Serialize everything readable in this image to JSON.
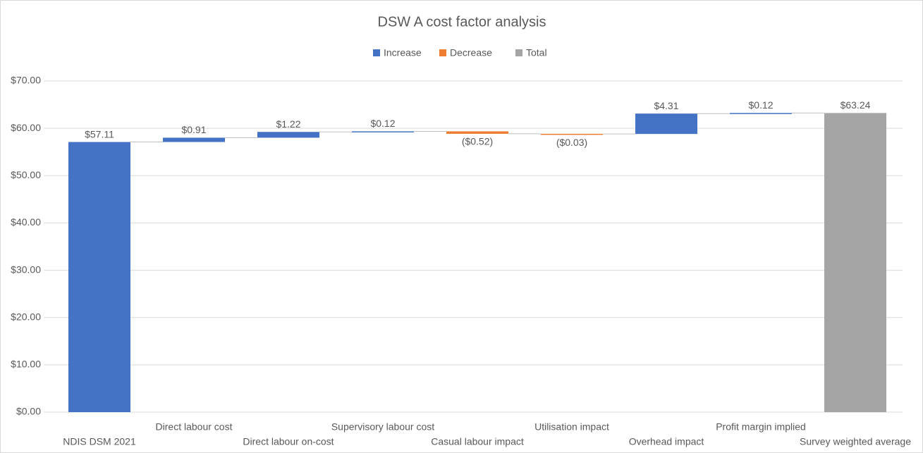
{
  "chart_data": {
    "type": "waterfall",
    "title": "DSW A cost factor analysis",
    "categories": [
      "NDIS DSM 2021",
      "Direct labour cost",
      "Direct labour on-cost",
      "Supervisory labour cost",
      "Casual labour impact",
      "Utilisation impact",
      "Overhead impact",
      "Profit margin implied",
      "Survey weighted average"
    ],
    "values": [
      57.11,
      0.91,
      1.22,
      0.12,
      -0.52,
      -0.03,
      4.31,
      0.12,
      63.24
    ],
    "value_labels": [
      "$57.11",
      "$0.91",
      "$1.22",
      "$0.12",
      "($0.52)",
      "($0.03)",
      "$4.31",
      "$0.12",
      "$63.24"
    ],
    "totals": [
      8
    ],
    "legend": [
      {
        "name": "Increase",
        "color": "#4472c4"
      },
      {
        "name": "Decrease",
        "color": "#ed7d31"
      },
      {
        "name": "Total",
        "color": "#a5a5a5"
      }
    ],
    "ylim": [
      0,
      70
    ],
    "yticks": [
      {
        "value": 0,
        "label": "$0.00"
      },
      {
        "value": 10,
        "label": "$10.00"
      },
      {
        "value": 20,
        "label": "$20.00"
      },
      {
        "value": 30,
        "label": "$30.00"
      },
      {
        "value": 40,
        "label": "$40.00"
      },
      {
        "value": 50,
        "label": "$50.00"
      },
      {
        "value": 60,
        "label": "$60.00"
      },
      {
        "value": 70,
        "label": "$70.00"
      }
    ],
    "grid": true
  }
}
